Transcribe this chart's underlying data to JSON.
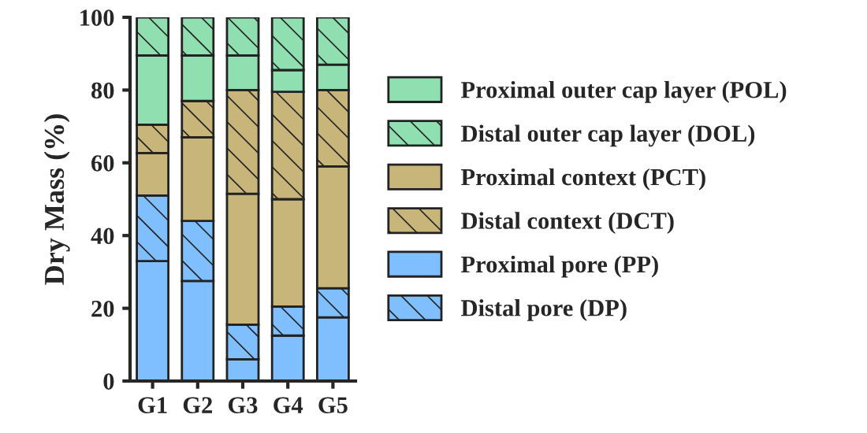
{
  "chart_data": {
    "type": "bar",
    "stacked": true,
    "ylabel": "Dry Mass (%)",
    "categories": [
      "G1",
      "G2",
      "G3",
      "G4",
      "G5"
    ],
    "ylim": [
      0,
      100
    ],
    "yticks": [
      0,
      20,
      40,
      60,
      80,
      100
    ],
    "grid": false,
    "legend": "right",
    "series": [
      {
        "name": "Proximal pore (PP)",
        "color": "#7fbfff",
        "values": [
          33,
          27.5,
          6,
          12.5,
          17.5
        ]
      },
      {
        "name": "Distal pore (DP)",
        "color": "#7fbfff",
        "values": [
          18,
          16.5,
          9.5,
          8,
          8
        ]
      },
      {
        "name": "Proximal context (PCT)",
        "color": "#c8b57a",
        "values": [
          11.7,
          23,
          36,
          29.5,
          33.5
        ]
      },
      {
        "name": "Distal context (DCT)",
        "color": "#c8b57a",
        "values": [
          7.8,
          10,
          28.5,
          29.5,
          21
        ]
      },
      {
        "name": "Proximal outer cap layer (POL)",
        "color": "#8fdfb0",
        "values": [
          19,
          12.5,
          9.5,
          6,
          7
        ]
      },
      {
        "name": "Distal outer cap layer (DOL)",
        "color": "#8fdfb0",
        "values": [
          10.5,
          10.5,
          10.5,
          14.5,
          13
        ]
      }
    ]
  }
}
